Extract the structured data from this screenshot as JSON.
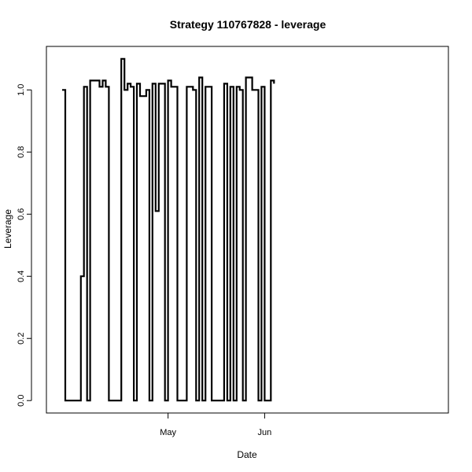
{
  "chart_data": {
    "type": "line",
    "step": true,
    "title": "Strategy 110767828 - leverage",
    "xlabel": "Date",
    "ylabel": "Leverage",
    "x_ticks": [
      {
        "date": "2016-05-01",
        "label": "May"
      },
      {
        "date": "2016-06-01",
        "label": "Jun"
      }
    ],
    "y_ticks": [
      {
        "value": 0.0,
        "label": "0.0"
      },
      {
        "value": 0.2,
        "label": "0.2"
      },
      {
        "value": 0.4,
        "label": "0.4"
      },
      {
        "value": 0.6,
        "label": "0.6"
      },
      {
        "value": 0.8,
        "label": "0.8"
      },
      {
        "value": 1.0,
        "label": "1.0"
      }
    ],
    "xlim": [
      "2016-03-28",
      "2016-06-06"
    ],
    "ylim": [
      -0.04,
      1.14
    ],
    "grid": false,
    "line_color": "#000000",
    "series": [
      {
        "x": [
          "2016-03-28",
          "2016-03-29",
          "2016-04-03",
          "2016-04-04",
          "2016-04-05",
          "2016-04-06",
          "2016-04-09",
          "2016-04-10",
          "2016-04-11",
          "2016-04-12",
          "2016-04-16",
          "2016-04-17",
          "2016-04-18",
          "2016-04-19",
          "2016-04-20",
          "2016-04-21",
          "2016-04-22",
          "2016-04-24",
          "2016-04-25",
          "2016-04-26",
          "2016-04-27",
          "2016-04-28",
          "2016-04-30",
          "2016-05-01",
          "2016-05-02",
          "2016-05-04",
          "2016-05-07",
          "2016-05-09",
          "2016-05-10",
          "2016-05-11",
          "2016-05-12",
          "2016-05-13",
          "2016-05-15",
          "2016-05-19",
          "2016-05-20",
          "2016-05-21",
          "2016-05-22",
          "2016-05-23",
          "2016-05-24",
          "2016-05-25",
          "2016-05-26",
          "2016-05-28",
          "2016-05-30",
          "2016-05-31",
          "2016-06-01",
          "2016-06-03",
          "2016-06-04"
        ],
        "values": [
          1.0,
          0.0,
          0.4,
          1.01,
          0.0,
          1.03,
          1.01,
          1.03,
          1.01,
          0.0,
          1.1,
          1.0,
          1.02,
          1.01,
          0.0,
          1.02,
          0.98,
          1.0,
          0.0,
          1.02,
          0.61,
          1.02,
          0.0,
          1.03,
          1.01,
          0.0,
          1.01,
          1.0,
          0.0,
          1.04,
          0.0,
          1.01,
          0.0,
          1.02,
          0.0,
          1.01,
          0.0,
          1.01,
          1.0,
          0.0,
          1.04,
          1.0,
          0.0,
          1.01,
          0.0,
          1.03,
          1.02
        ]
      }
    ]
  }
}
